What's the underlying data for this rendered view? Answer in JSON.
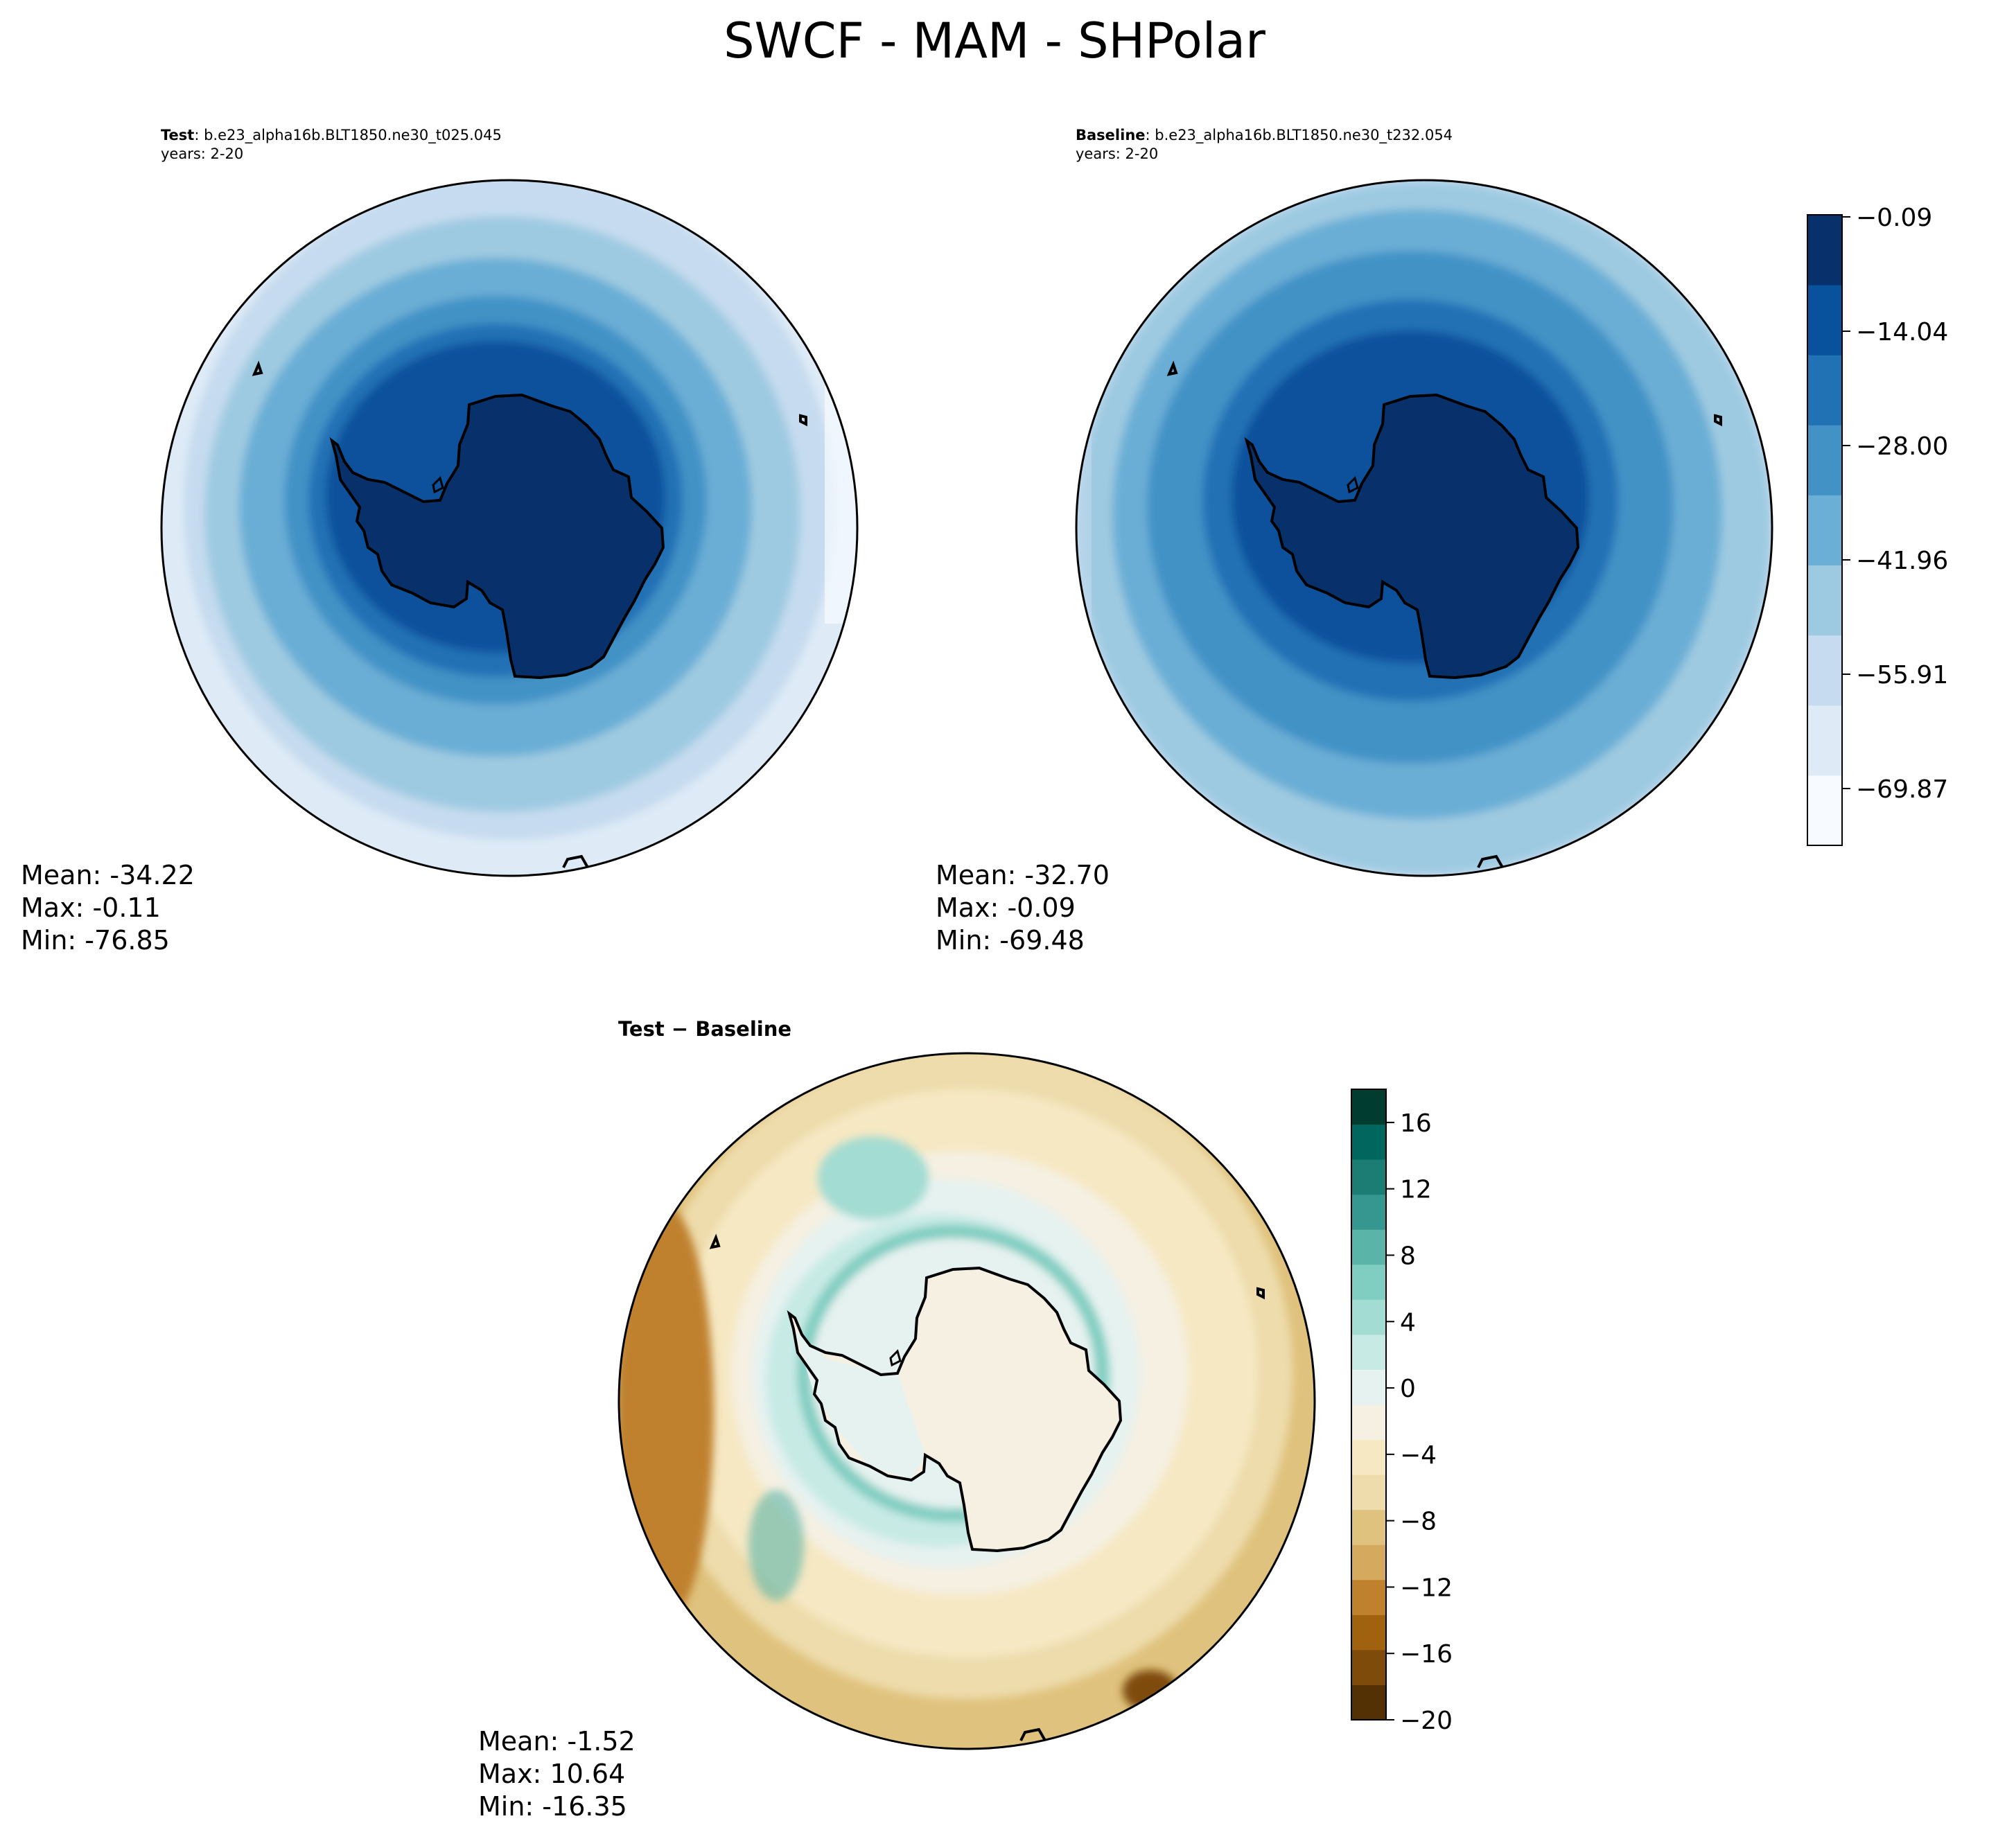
{
  "title": "SWCF - MAM - SHPolar",
  "test": {
    "label": "Test",
    "case": ": b.e23_alpha16b.BLT1850.ne30_t025.045",
    "years": "years: 2-20",
    "mean": "Mean: -34.22",
    "max": "Max: -0.11",
    "min": "Min: -76.85"
  },
  "baseline": {
    "label": "Baseline",
    "case": ": b.e23_alpha16b.BLT1850.ne30_t232.054",
    "years": "years: 2-20",
    "mean": "Mean: -32.70",
    "max": "Max: -0.09",
    "min": "Min: -69.48"
  },
  "diff": {
    "label": "Test − Baseline",
    "mean": "Mean: -1.52",
    "max": "Max: 10.64",
    "min": "Min: -16.35"
  },
  "colorbar_main": {
    "ticks": [
      "−0.09",
      "−14.04",
      "−28.00",
      "−41.96",
      "−55.91",
      "−69.87"
    ],
    "colors": [
      "#f7fbff",
      "#deebf7",
      "#c6dbef",
      "#9ecae1",
      "#6baed6",
      "#4292c6",
      "#2171b5",
      "#08519c",
      "#08306b"
    ]
  },
  "colorbar_diff": {
    "ticks": [
      "16",
      "12",
      "8",
      "4",
      "0",
      "−4",
      "−8",
      "−12",
      "−16",
      "−20"
    ],
    "colors": [
      "#543005",
      "#7f4b0a",
      "#a0620f",
      "#bf812d",
      "#d5a95e",
      "#dfc27d",
      "#eedcac",
      "#f6e8c3",
      "#f5f0e2",
      "#e6f2f0",
      "#c7eae5",
      "#a3dcd2",
      "#80cdc1",
      "#5ab4a8",
      "#35978f",
      "#1b7d74",
      "#01665e",
      "#003c30"
    ]
  }
}
